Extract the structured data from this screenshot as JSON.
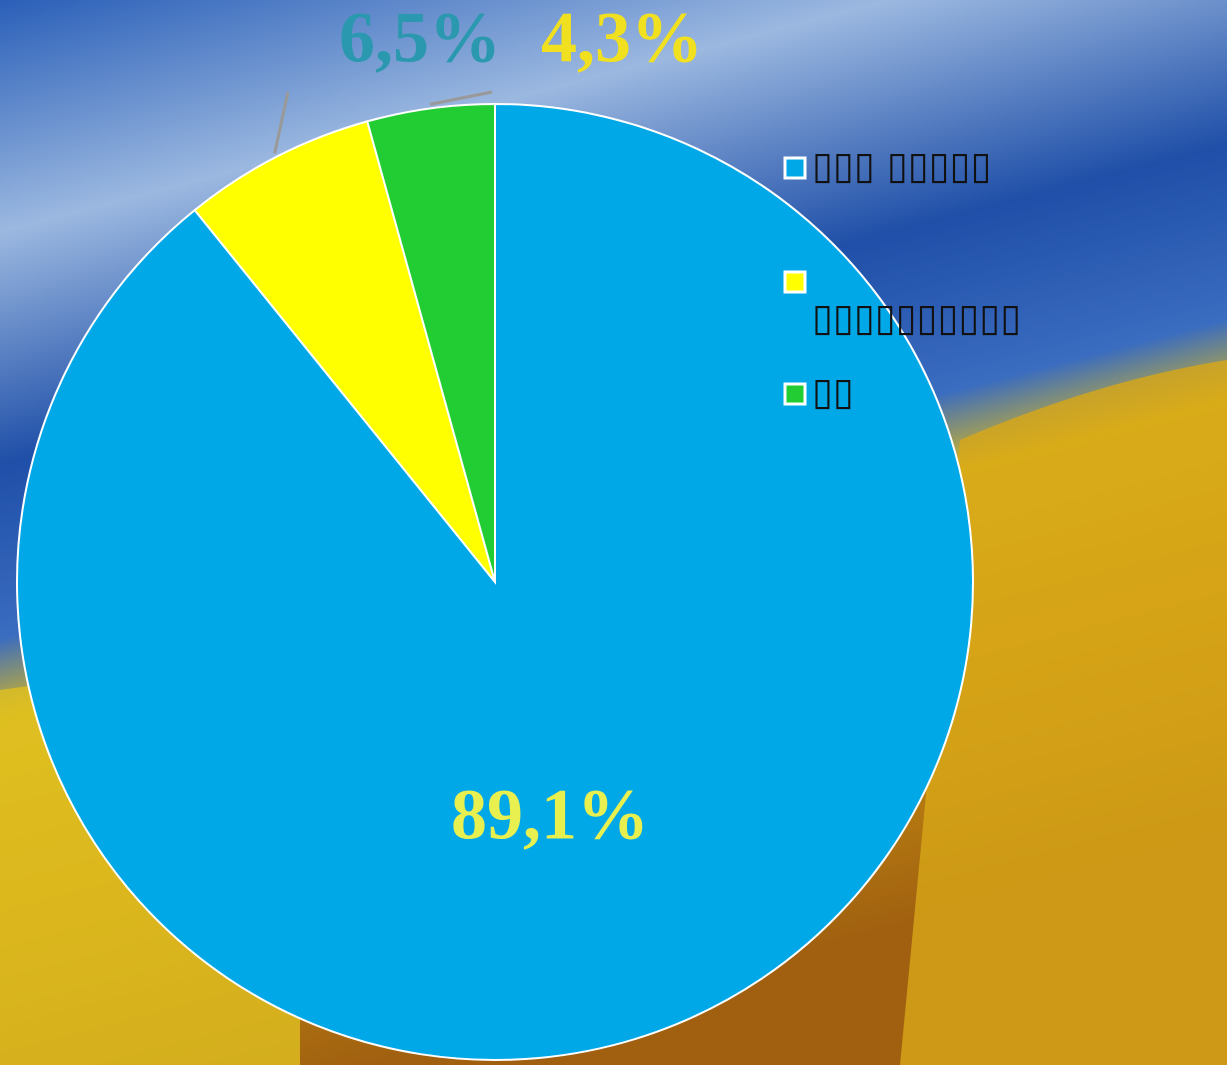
{
  "chart_data": {
    "type": "pie",
    "categories": [
      "▯▯▯ ▯▯▯▯▯",
      "▯▯▯▯▯▯▯▯▯▯",
      "▯▯"
    ],
    "values": [
      89.1,
      6.5,
      4.3
    ],
    "value_labels": [
      "89,1%",
      "6,5%",
      "4,3%"
    ],
    "colors": [
      "#00a8e8",
      "#ffff00",
      "#22cc33"
    ],
    "label_colors": [
      "#e8f050",
      "#2a98ae",
      "#f0e020"
    ],
    "legend": "right"
  }
}
